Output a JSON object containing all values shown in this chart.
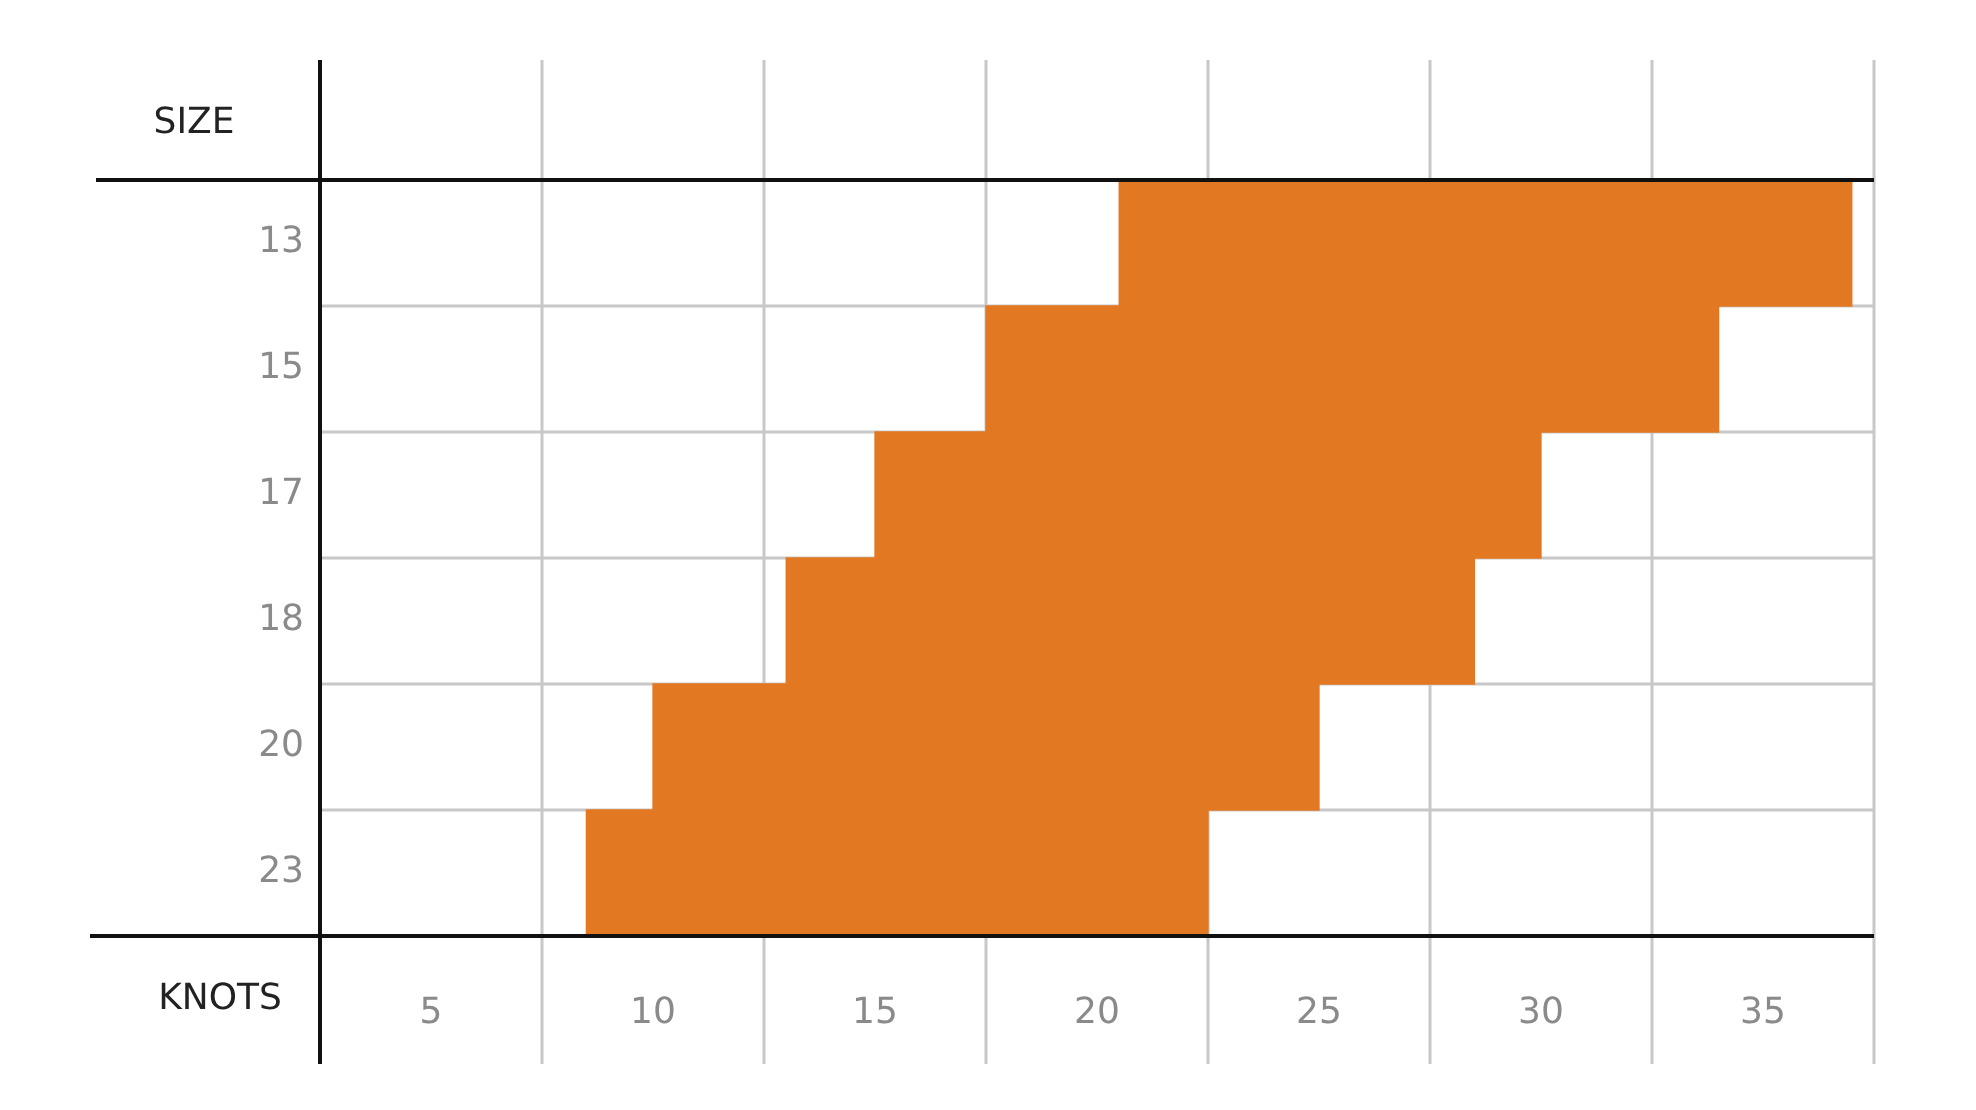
{
  "chart_data": {
    "type": "bar",
    "orientation": "horizontal",
    "ylabel": "SIZE",
    "xlabel": "KNOTS",
    "categories": [
      "13",
      "15",
      "17",
      "18",
      "20",
      "23"
    ],
    "base": [
      20.5,
      17.5,
      15,
      13,
      10,
      8.5
    ],
    "values": [
      16.5,
      16.5,
      15,
      15.5,
      15,
      14
    ],
    "color": "#e37822",
    "xlim": [
      2.5,
      37.5
    ],
    "xticks": [
      {
        "value": 2.5,
        "label": null
      },
      5,
      {
        "value": 7.5,
        "label": null
      },
      10,
      {
        "value": 12.5,
        "label": null
      },
      15,
      {
        "value": 17.5,
        "label": null
      },
      20,
      {
        "value": 22.5,
        "label": null
      },
      25,
      {
        "value": 27.5,
        "label": null
      },
      30,
      {
        "value": 32.5,
        "label": null
      },
      35,
      {
        "value": 37.5,
        "label": null
      }
    ],
    "grid": true
  }
}
